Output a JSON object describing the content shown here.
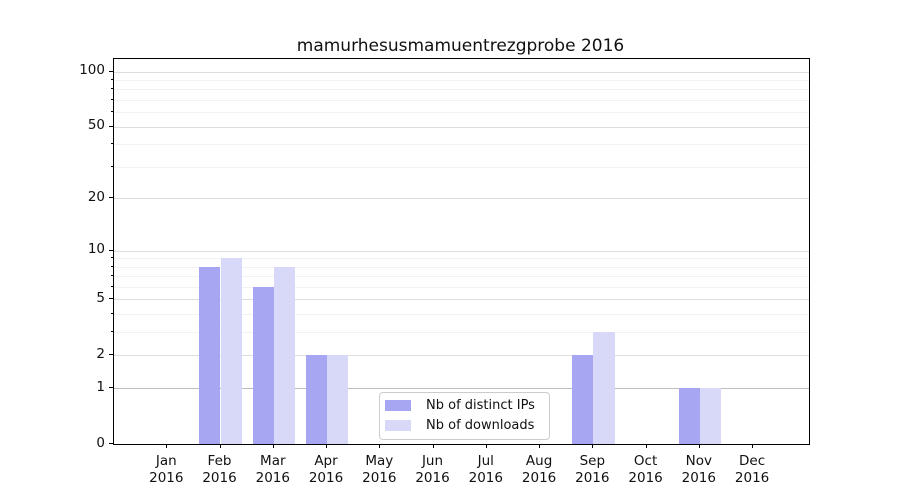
{
  "chart_data": {
    "type": "bar",
    "title": "mamurhesusmamuentrezgprobe 2016",
    "year": "2016",
    "categories": [
      "Jan",
      "Feb",
      "Mar",
      "Apr",
      "May",
      "Jun",
      "Jul",
      "Aug",
      "Sep",
      "Oct",
      "Nov",
      "Dec"
    ],
    "series": [
      {
        "name": "Nb of distinct IPs",
        "color": "#a6a6f2",
        "values": [
          0,
          8,
          6,
          2,
          0,
          0,
          0,
          0,
          2,
          0,
          1,
          0
        ]
      },
      {
        "name": "Nb of downloads",
        "color": "#d8d8f8",
        "values": [
          0,
          9,
          8,
          2,
          0,
          0,
          0,
          0,
          3,
          0,
          1,
          0
        ]
      }
    ],
    "yscale": "log1p",
    "yticks": [
      0,
      1,
      2,
      5,
      10,
      20,
      50,
      100
    ],
    "minor_yticks": [
      3,
      4,
      6,
      7,
      8,
      9,
      30,
      40,
      60,
      70,
      80,
      90
    ],
    "ylim": [
      0,
      117
    ],
    "xlabel": "",
    "ylabel": "",
    "grid": "both",
    "legend_position": "lower center",
    "colors": {
      "spine": "#000000",
      "grid_major": "#dddddd",
      "grid_minor": "#f2f2f2",
      "grid_baseline": "#bdbdbd",
      "background": "#ffffff"
    }
  }
}
